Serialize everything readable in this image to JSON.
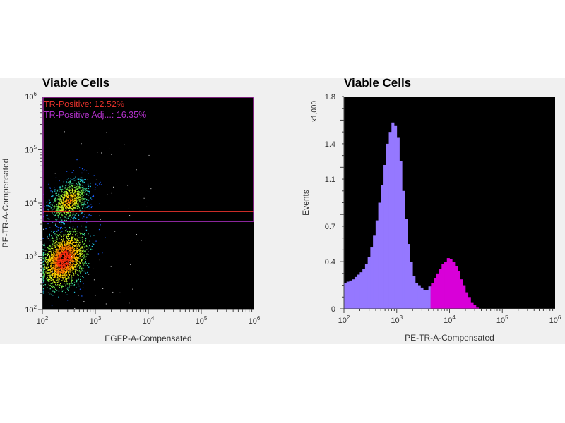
{
  "chart_data": [
    {
      "type": "scatter",
      "title": "Viable Cells",
      "xlabel": "EGFP-A-Compensated",
      "ylabel": "PE-TR-A-Compensated",
      "xscale": "log",
      "yscale": "log",
      "xlim": [
        100,
        1000000
      ],
      "ylim": [
        100,
        1000000
      ],
      "xticks": [
        {
          "b": "10",
          "e": "2"
        },
        {
          "b": "10",
          "e": "3"
        },
        {
          "b": "10",
          "e": "4"
        },
        {
          "b": "10",
          "e": "5"
        },
        {
          "b": "10",
          "e": "6"
        }
      ],
      "yticks": [
        {
          "b": "10",
          "e": "2"
        },
        {
          "b": "10",
          "e": "3"
        },
        {
          "b": "10",
          "e": "4"
        },
        {
          "b": "10",
          "e": "5"
        },
        {
          "b": "10",
          "e": "6"
        }
      ],
      "populations": [
        {
          "name": "low",
          "center_log": [
            2.4,
            2.95
          ],
          "sd_log": [
            0.2,
            0.25
          ],
          "n": 1800
        },
        {
          "name": "high",
          "center_log": [
            2.5,
            4.05
          ],
          "sd_log": [
            0.2,
            0.2
          ],
          "n": 900
        }
      ],
      "gates": [
        {
          "label": "TR-Positive: 12.52%",
          "color": "#e0302a",
          "y_min": 7000,
          "y_max": 1000000
        },
        {
          "label": "TR-Positive Adj...: 16.35%",
          "color": "#b030c8",
          "y_min": 4500,
          "y_max": 1000000
        }
      ]
    },
    {
      "type": "bar",
      "title": "Viable Cells",
      "xlabel": "PE-TR-A-Compensated",
      "ylabel": "Events",
      "ymultiplier": "x1,000",
      "xscale": "log",
      "xlim": [
        100,
        1000000
      ],
      "ylim": [
        0,
        1.8
      ],
      "xticks": [
        {
          "b": "10",
          "e": "2"
        },
        {
          "b": "10",
          "e": "3"
        },
        {
          "b": "10",
          "e": "4"
        },
        {
          "b": "10",
          "e": "5"
        },
        {
          "b": "10",
          "e": "6"
        }
      ],
      "yticks": [
        "0",
        "0.4",
        "0.7",
        "1.1",
        "1.4",
        "1.8"
      ],
      "bin_log_start": 2.0,
      "bin_log_width": 0.05,
      "values": [
        0.22,
        0.23,
        0.24,
        0.25,
        0.27,
        0.29,
        0.31,
        0.34,
        0.38,
        0.44,
        0.52,
        0.62,
        0.75,
        0.9,
        1.05,
        1.22,
        1.4,
        1.5,
        1.58,
        1.55,
        1.45,
        1.25,
        1.0,
        0.76,
        0.55,
        0.4,
        0.28,
        0.22,
        0.2,
        0.18,
        0.16,
        0.16,
        0.19,
        0.22,
        0.26,
        0.3,
        0.34,
        0.38,
        0.4,
        0.43,
        0.42,
        0.4,
        0.36,
        0.32,
        0.25,
        0.2,
        0.14,
        0.1,
        0.05,
        0.03,
        0.01,
        0,
        0,
        0,
        0,
        0,
        0,
        0,
        0,
        0,
        0,
        0,
        0,
        0,
        0,
        0,
        0,
        0,
        0,
        0,
        0,
        0,
        0,
        0,
        0,
        0,
        0,
        0,
        0,
        0
      ],
      "gate_log_start": 3.64,
      "colors": {
        "ungated": "#9578ff",
        "gated": "#d800d8"
      }
    }
  ]
}
